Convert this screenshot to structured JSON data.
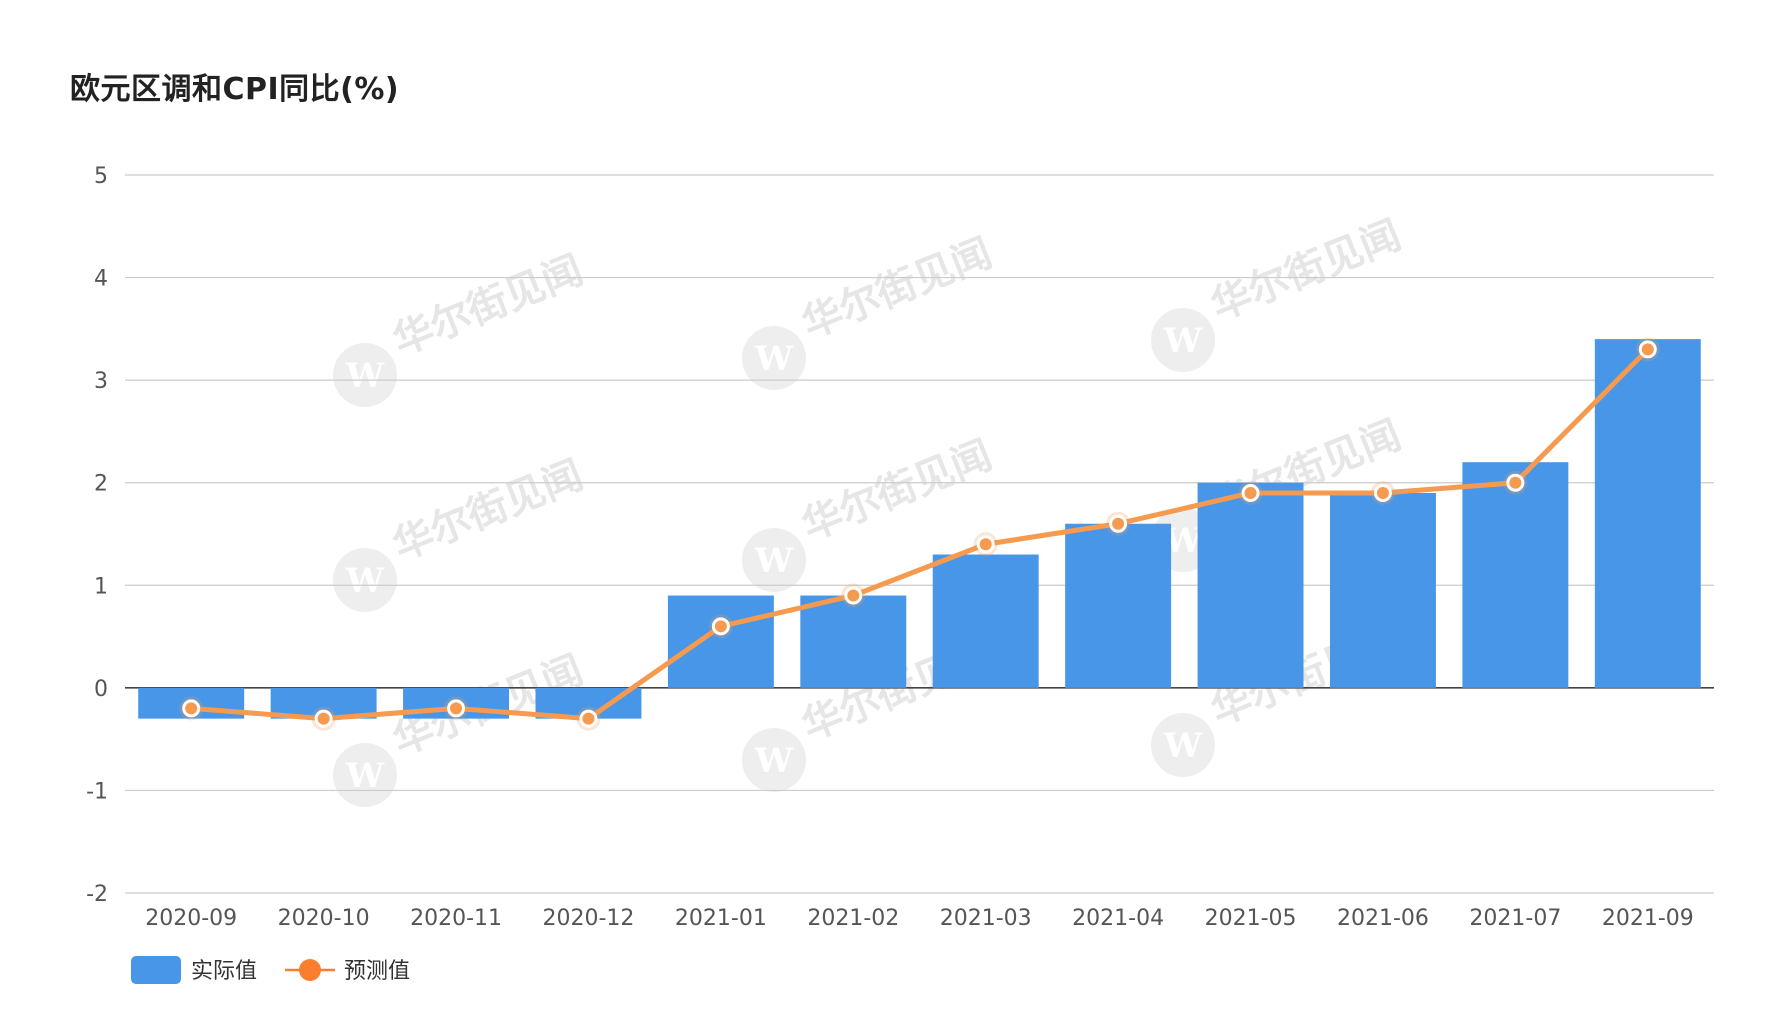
{
  "chart_data": {
    "type": "bar",
    "title": "欧元区调和CPI同比(%)",
    "categories": [
      "2020-09",
      "2020-10",
      "2020-11",
      "2020-12",
      "2021-01",
      "2021-02",
      "2021-03",
      "2021-04",
      "2021-05",
      "2021-06",
      "2021-07",
      "2021-09"
    ],
    "series": [
      {
        "name": "实际值",
        "type": "bar",
        "color": "#4796e8",
        "values": [
          -0.3,
          -0.3,
          -0.3,
          -0.3,
          0.9,
          0.9,
          1.3,
          1.6,
          2.0,
          1.9,
          2.2,
          3.4
        ]
      },
      {
        "name": "预测值",
        "type": "line",
        "color": "#f59a4e",
        "values": [
          -0.2,
          -0.3,
          -0.2,
          -0.3,
          0.6,
          0.9,
          1.4,
          1.6,
          1.9,
          1.9,
          2.0,
          3.3
        ]
      }
    ],
    "ylim": [
      -2,
      5
    ],
    "yticks": [
      5,
      4,
      3,
      2,
      1,
      0,
      -1,
      -2
    ],
    "grid": true,
    "legend_position": "bottom-left",
    "xlabel": "",
    "ylabel": ""
  },
  "watermark": "华尔街见闻",
  "colors": {
    "grid": "#cccccc",
    "zero_line": "#444444",
    "axis_text": "#555555",
    "marker_fill": "#ffffff"
  }
}
